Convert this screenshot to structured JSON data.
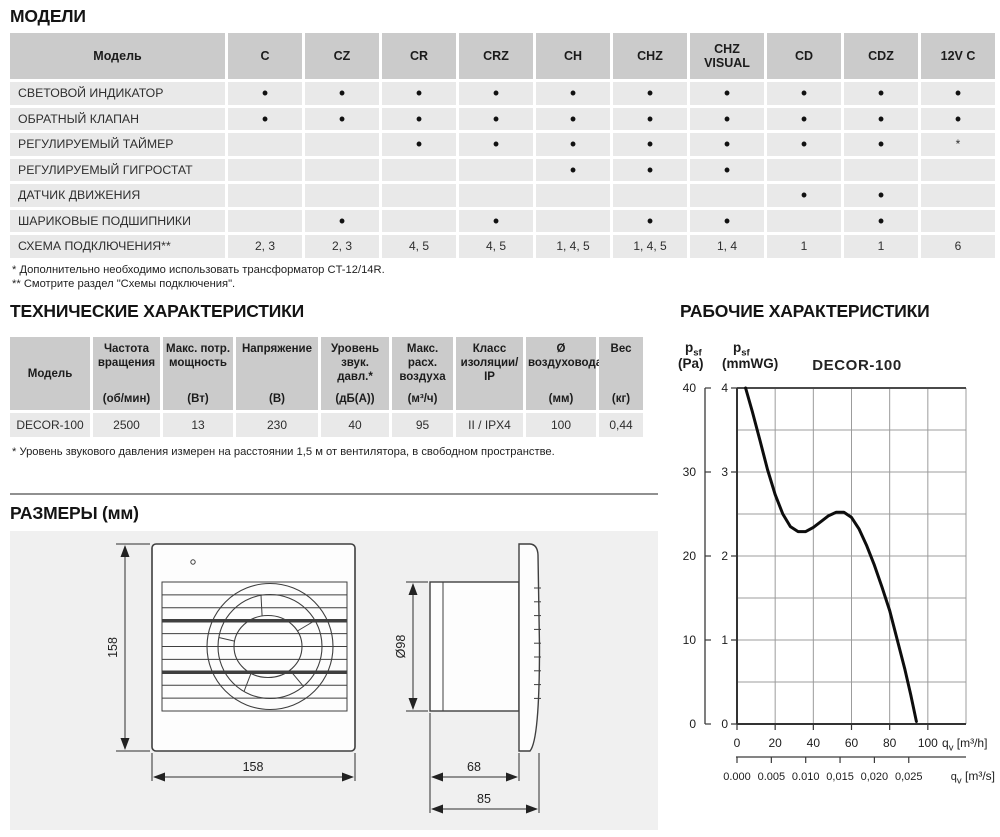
{
  "sections": {
    "models": {
      "title": "МОДЕЛИ",
      "table": {
        "header_first": "Модель",
        "columns": [
          "C",
          "CZ",
          "CR",
          "CRZ",
          "CH",
          "CHZ",
          "CHZ VISUAL",
          "CD",
          "CDZ",
          "12V C"
        ],
        "rows": [
          {
            "label": "СВЕТОВОЙ ИНДИКАТОР",
            "cells": [
              "•",
              "•",
              "•",
              "•",
              "•",
              "•",
              "•",
              "•",
              "•",
              "•"
            ]
          },
          {
            "label": "ОБРАТНЫЙ КЛАПАН",
            "cells": [
              "•",
              "•",
              "•",
              "•",
              "•",
              "•",
              "•",
              "•",
              "•",
              "•"
            ]
          },
          {
            "label": "РЕГУЛИРУЕМЫЙ ТАЙМЕР",
            "cells": [
              "",
              "",
              "•",
              "•",
              "•",
              "•",
              "•",
              "•",
              "•",
              "*"
            ]
          },
          {
            "label": "РЕГУЛИРУЕМЫЙ ГИГРОСТАТ",
            "cells": [
              "",
              "",
              "",
              "",
              "•",
              "•",
              "•",
              "",
              "",
              ""
            ]
          },
          {
            "label": "ДАТЧИК ДВИЖЕНИЯ",
            "cells": [
              "",
              "",
              "",
              "",
              "",
              "",
              "",
              "•",
              "•",
              ""
            ]
          },
          {
            "label": "ШАРИКОВЫЕ ПОДШИПНИКИ",
            "cells": [
              "",
              "•",
              "",
              "•",
              "",
              "•",
              "•",
              "",
              "•",
              ""
            ]
          },
          {
            "label": "СХЕМА ПОДКЛЮЧЕНИЯ**",
            "cells": [
              "2, 3",
              "2, 3",
              "4, 5",
              "4, 5",
              "1, 4, 5",
              "1, 4, 5",
              "1, 4",
              "1",
              "1",
              "6"
            ]
          }
        ]
      },
      "footnotes": [
        "* Дополнительно необходимо использовать трансформатор CT-12/14R.",
        "** Смотрите раздел \"Схемы подключения\"."
      ]
    },
    "tech": {
      "title": "ТЕХНИЧЕСКИЕ ХАРАКТЕРИСТИКИ",
      "table": {
        "columns": [
          {
            "top": "Модель",
            "unit": ""
          },
          {
            "top": "Частота вращения",
            "unit": "(об/мин)"
          },
          {
            "top": "Макс. потр. мощность",
            "unit": "(Вт)"
          },
          {
            "top": "Напряжение",
            "unit": "(В)"
          },
          {
            "top": "Уровень звук. давл.*",
            "unit": "(дБ(А))"
          },
          {
            "top": "Макс. расх. воздуха",
            "unit": "(м³/ч)"
          },
          {
            "top": "Класс изоляции/ IP",
            "unit": ""
          },
          {
            "top": "Ø воздуховода",
            "unit": "(мм)"
          },
          {
            "top": "Вес",
            "unit": "(кг)"
          }
        ],
        "row": [
          "DECOR-100",
          "2500",
          "13",
          "230",
          "40",
          "95",
          "II / IPX4",
          "100",
          "0,44"
        ]
      },
      "footnote": "* Уровень звукового давления измерен на расстоянии 1,5 м от вентилятора, в свободном пространстве."
    },
    "dimensions": {
      "title": "РАЗМЕРЫ (мм)",
      "labels": {
        "height": "158",
        "width": "158",
        "diameter": "Ø98",
        "duct_depth": "68",
        "total_depth": "85"
      }
    },
    "performance": {
      "title": "РАБОЧИЕ ХАРАКТЕРИСТИКИ"
    }
  },
  "chart_data": {
    "type": "line",
    "title": "DECOR-100",
    "grid": true,
    "y_left_outer": {
      "unit_label": {
        "sym": "p",
        "sub": "sf",
        "unit": "(Pa)"
      },
      "ticks": [
        0,
        10,
        20,
        30,
        40
      ],
      "max": 40
    },
    "y_left_inner": {
      "unit_label": {
        "sym": "p",
        "sub": "sf",
        "unit": "(mmWG)"
      },
      "ticks": [
        0,
        1,
        2,
        3,
        4
      ],
      "max": 4
    },
    "x": {
      "unit_label": {
        "sym": "q",
        "sub": "v",
        "unit": "[m³/h]"
      },
      "ticks": [
        0,
        20,
        40,
        60,
        80,
        100
      ],
      "grid_max": 120
    },
    "x_secondary": {
      "unit_label": {
        "sym": "q",
        "sub": "v",
        "unit": "[m³/s]"
      },
      "tick_labels": [
        "0.000",
        "0.005",
        "0.010",
        "0,015",
        "0,020",
        "0,025"
      ]
    },
    "series": [
      {
        "name": "DECOR-100",
        "x_m3h": [
          4.5,
          8,
          12,
          16,
          20,
          24,
          28,
          32,
          36,
          40,
          44,
          48,
          52,
          56,
          60,
          64,
          68,
          72,
          76,
          80,
          84,
          88,
          91,
          94
        ],
        "p_Pa": [
          40,
          37.2,
          33.8,
          30.3,
          27.3,
          25.0,
          23.5,
          22.9,
          22.9,
          23.4,
          24.1,
          24.8,
          25.2,
          25.2,
          24.6,
          23.2,
          21.2,
          18.9,
          16.3,
          13.5,
          10,
          6.5,
          3.5,
          0.3
        ]
      }
    ]
  }
}
